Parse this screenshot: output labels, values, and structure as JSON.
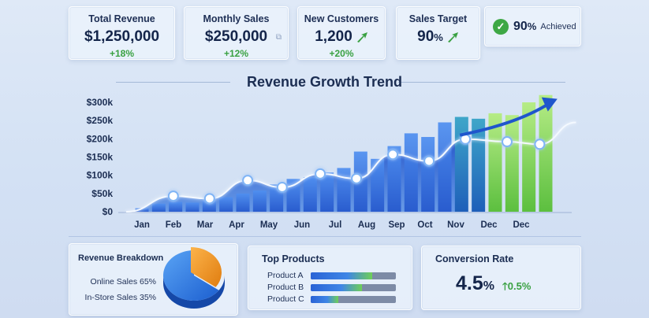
{
  "kpis": {
    "total_revenue": {
      "title": "Total Revenue",
      "value": "$1,250,000",
      "delta": "+18%"
    },
    "monthly_sales": {
      "title": "Monthly Sales",
      "value": "$250,000",
      "delta": "+12%"
    },
    "new_customers": {
      "title": "New Customers",
      "value": "1,200",
      "delta": "+20%"
    },
    "sales_target": {
      "title": "Sales Target",
      "value": "90",
      "unit": "%"
    },
    "achieved": {
      "value": "90",
      "unit": "%",
      "label": "Achieved"
    }
  },
  "chart_data": {
    "type": "bar",
    "title": "Revenue Growth Trend",
    "y_ticks": [
      "$0",
      "$50k",
      "$100k",
      "$150k",
      "$200k",
      "$250k",
      "$300k"
    ],
    "ylim": [
      0,
      300000
    ],
    "x_labels": [
      "Jan",
      "Feb",
      "Mar",
      "Apr",
      "May",
      "Jun",
      "Jul",
      "Aug",
      "Sep",
      "Oct",
      "Nov",
      "Dec",
      "Dec"
    ],
    "bars": [
      10000,
      22000,
      27000,
      25000,
      30000,
      40000,
      50000,
      58000,
      75000,
      90000,
      95000,
      108000,
      120000,
      165000,
      145000,
      180000,
      215000,
      205000,
      245000,
      260000,
      255000,
      270000,
      265000,
      300000,
      320000
    ],
    "line": [
      {
        "x": 0,
        "y": 0
      },
      {
        "x": 1.3,
        "y": 43000
      },
      {
        "x": 2.3,
        "y": 36000
      },
      {
        "x": 3.35,
        "y": 86000
      },
      {
        "x": 4.3,
        "y": 67000
      },
      {
        "x": 5.35,
        "y": 104000
      },
      {
        "x": 6.35,
        "y": 91000
      },
      {
        "x": 7.35,
        "y": 157000
      },
      {
        "x": 8.35,
        "y": 139000
      },
      {
        "x": 9.35,
        "y": 199000
      },
      {
        "x": 10.5,
        "y": 192000
      },
      {
        "x": 11.4,
        "y": 185000
      },
      {
        "x": 12.4,
        "y": 245000
      }
    ],
    "trend_arrow": {
      "from": {
        "x": 9.2,
        "y": 210000
      },
      "to": {
        "x": 11.8,
        "y": 305000
      }
    },
    "grid": false
  },
  "breakdown": {
    "title": "Revenue Breakdown",
    "items": [
      {
        "label": "Online Sales 65%",
        "share": 65
      },
      {
        "label": "In-Store Sales 35%",
        "share": 35
      }
    ]
  },
  "products": {
    "title": "Top Products",
    "items": [
      {
        "label": "Product A",
        "fill": 0.72
      },
      {
        "label": "Product B",
        "fill": 0.6
      },
      {
        "label": "Product C",
        "fill": 0.32
      }
    ]
  },
  "conversion": {
    "title": "Conversion Rate",
    "value": "4.5",
    "unit": "%",
    "delta": "0.5%"
  },
  "colors": {
    "accent_green": "#3aa142",
    "navy": "#14254a",
    "bar_blue": "#2a63d6",
    "bar_green": "#7fd35a",
    "pie_blue": "#2f7be8",
    "pie_orange": "#f39a1e"
  },
  "icons": [
    "up-arrow-icon",
    "check-icon",
    "copy-icon",
    "trend-arrow-icon",
    "pie-icon"
  ]
}
